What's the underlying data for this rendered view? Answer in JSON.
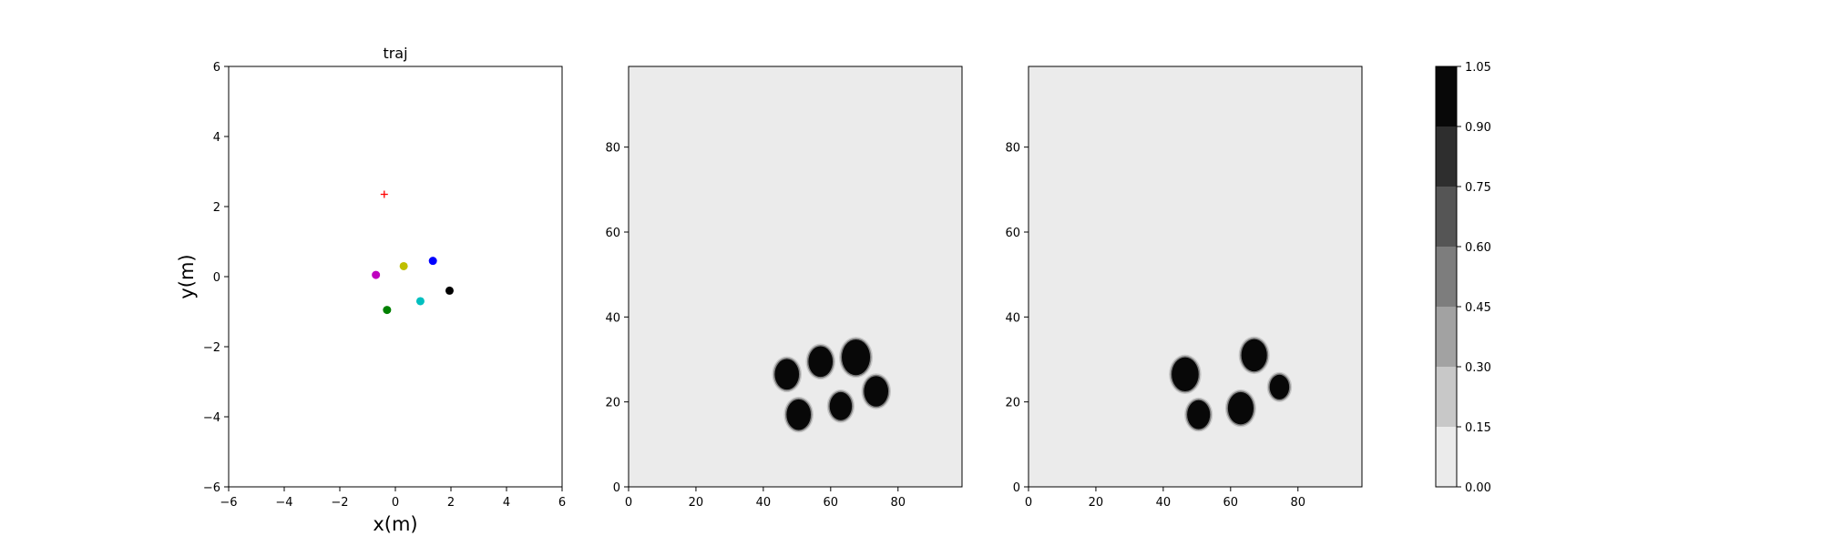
{
  "chart_data": [
    {
      "type": "scatter",
      "title": "traj",
      "xlabel": "x(m)",
      "ylabel": "y(m)",
      "xlim": [
        -6,
        6
      ],
      "ylim": [
        -6,
        6
      ],
      "xticks": [
        -6,
        -4,
        -2,
        0,
        2,
        4,
        6
      ],
      "yticks": [
        -6,
        -4,
        -2,
        0,
        2,
        4,
        6
      ],
      "xtick_labels": [
        "−6",
        "−4",
        "−2",
        "0",
        "2",
        "4",
        "6"
      ],
      "ytick_labels": [
        "−6",
        "−4",
        "−2",
        "0",
        "2",
        "4",
        "6"
      ],
      "grid": false,
      "target": {
        "x": -0.4,
        "y": 2.35,
        "marker": "+",
        "color": "#ff0000"
      },
      "points": [
        {
          "x": 1.35,
          "y": 0.45,
          "color": "#0000ff"
        },
        {
          "x": 0.3,
          "y": 0.3,
          "color": "#bfbf00"
        },
        {
          "x": -0.7,
          "y": 0.05,
          "color": "#bf00bf"
        },
        {
          "x": 1.95,
          "y": -0.4,
          "color": "#000000"
        },
        {
          "x": 0.9,
          "y": -0.7,
          "color": "#00bfbf"
        },
        {
          "x": -0.3,
          "y": -0.95,
          "color": "#008000"
        }
      ]
    },
    {
      "type": "heatmap",
      "xlim": [
        0,
        99
      ],
      "ylim": [
        0,
        99
      ],
      "xticks": [
        0,
        20,
        40,
        60,
        80
      ],
      "yticks": [
        0,
        20,
        40,
        60,
        80
      ],
      "xtick_labels": [
        "0",
        "20",
        "40",
        "60",
        "80"
      ],
      "ytick_labels": [
        "0",
        "20",
        "40",
        "60",
        "80"
      ],
      "background_level": 0.0,
      "blobs": [
        {
          "x": 67.5,
          "y": 30.5,
          "r": 4.2,
          "value": 1.0
        },
        {
          "x": 57,
          "y": 29.5,
          "r": 3.6,
          "value": 1.0
        },
        {
          "x": 47,
          "y": 26.5,
          "r": 3.6,
          "value": 1.0
        },
        {
          "x": 73.5,
          "y": 22.5,
          "r": 3.6,
          "value": 1.0
        },
        {
          "x": 63,
          "y": 19,
          "r": 3.3,
          "value": 1.0
        },
        {
          "x": 50.5,
          "y": 17,
          "r": 3.6,
          "value": 1.0
        }
      ]
    },
    {
      "type": "heatmap",
      "xlim": [
        0,
        99
      ],
      "ylim": [
        0,
        99
      ],
      "xticks": [
        0,
        20,
        40,
        60,
        80
      ],
      "yticks": [
        0,
        20,
        40,
        60,
        80
      ],
      "xtick_labels": [
        "0",
        "20",
        "40",
        "60",
        "80"
      ],
      "ytick_labels": [
        "0",
        "20",
        "40",
        "60",
        "80"
      ],
      "background_level": 0.0,
      "blobs": [
        {
          "x": 67,
          "y": 31,
          "r": 3.8,
          "value": 1.0
        },
        {
          "x": 46.5,
          "y": 26.5,
          "r": 4.0,
          "value": 1.0
        },
        {
          "x": 74.5,
          "y": 23.5,
          "r": 2.9,
          "value": 0.9
        },
        {
          "x": 63,
          "y": 18.5,
          "r": 3.8,
          "value": 1.0
        },
        {
          "x": 50.5,
          "y": 17,
          "r": 3.4,
          "value": 1.0
        }
      ]
    }
  ],
  "colorbar": {
    "levels": [
      0.0,
      0.15,
      0.3,
      0.45,
      0.6,
      0.75,
      0.9,
      1.05
    ],
    "tick_labels": [
      "0.00",
      "0.15",
      "0.30",
      "0.45",
      "0.60",
      "0.75",
      "0.90",
      "1.05"
    ],
    "colors": [
      "#ebebeb",
      "#c8c8c8",
      "#a2a2a2",
      "#7d7d7d",
      "#555555",
      "#2e2e2e",
      "#080808"
    ]
  }
}
